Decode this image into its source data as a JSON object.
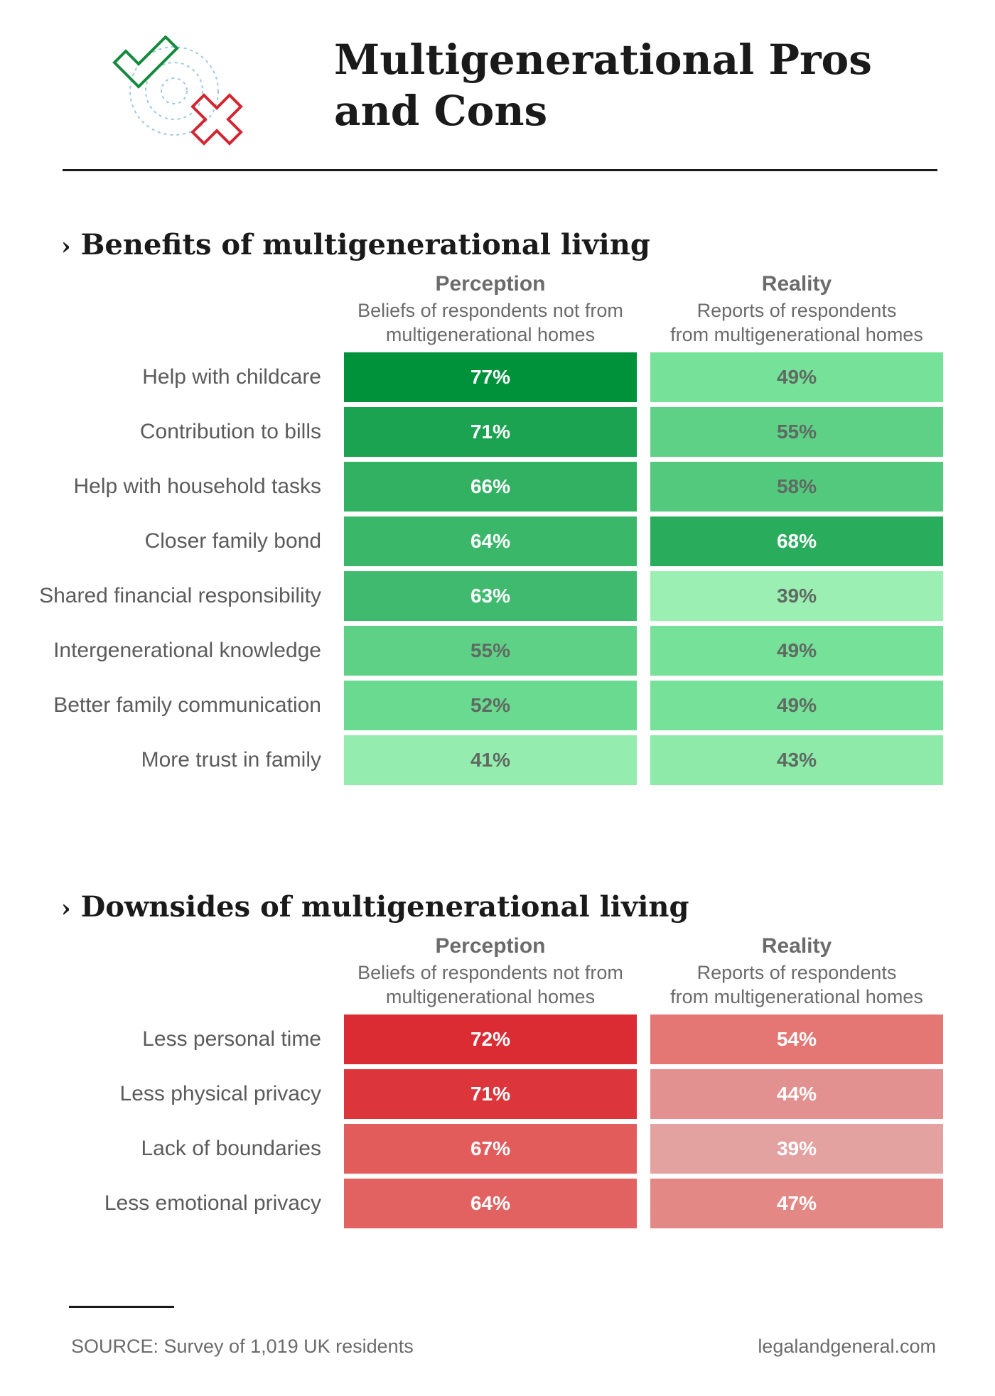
{
  "title": {
    "line1": "Multigenerational Pros",
    "line2": "and Cons"
  },
  "colors": {
    "check": "#148a3c",
    "cross": "#d22630",
    "rings": "#9cc7e6"
  },
  "columns": {
    "perception_title": "Perception",
    "perception_sub1": "Beliefs of respondents not from",
    "perception_sub2": "multigenerational homes",
    "reality_title": "Reality",
    "reality_sub1": "Reports of respondents",
    "reality_sub2": "from multigenerational homes"
  },
  "chart_data": [
    {
      "type": "heatmap",
      "title": "Benefits of multigenerational living",
      "columns": [
        "Perception",
        "Reality"
      ],
      "unit": "%",
      "palette": "green",
      "rows": [
        {
          "label": "Help with childcare",
          "perception": 77,
          "reality": 49
        },
        {
          "label": "Contribution to bills",
          "perception": 71,
          "reality": 55
        },
        {
          "label": "Help with household tasks",
          "perception": 66,
          "reality": 58
        },
        {
          "label": "Closer family bond",
          "perception": 64,
          "reality": 68
        },
        {
          "label": "Shared financial responsibility",
          "perception": 63,
          "reality": 39
        },
        {
          "label": "Intergenerational knowledge",
          "perception": 55,
          "reality": 49
        },
        {
          "label": "Better family communication",
          "perception": 52,
          "reality": 49
        },
        {
          "label": "More trust in family",
          "perception": 41,
          "reality": 43
        }
      ]
    },
    {
      "type": "heatmap",
      "title": "Downsides of multigenerational living",
      "columns": [
        "Perception",
        "Reality"
      ],
      "unit": "%",
      "palette": "red",
      "rows": [
        {
          "label": "Less personal time",
          "perception": 72,
          "reality": 54
        },
        {
          "label": "Less physical privacy",
          "perception": 71,
          "reality": 44
        },
        {
          "label": "Lack of boundaries",
          "perception": 67,
          "reality": 39
        },
        {
          "label": "Less emotional privacy",
          "perception": 64,
          "reality": 47
        }
      ]
    }
  ],
  "footer": {
    "source": "SOURCE: Survey of 1,019 UK residents",
    "site": "legalandgeneral.com"
  }
}
